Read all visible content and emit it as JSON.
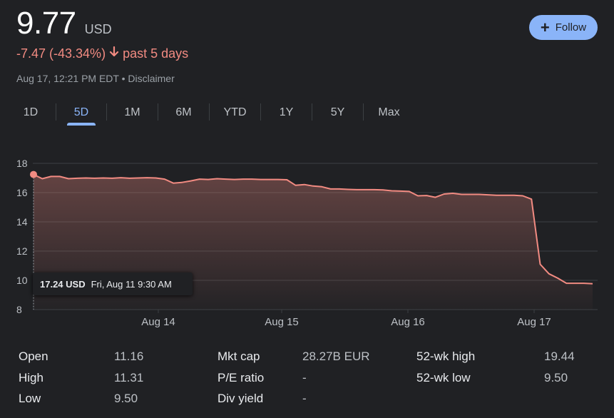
{
  "header": {
    "price": "9.77",
    "currency": "USD",
    "change": "-7.47 (-43.34%)",
    "period": "past 5 days",
    "timestamp": "Aug 17, 12:21 PM EDT",
    "separator": "•",
    "disclaimer": "Disclaimer",
    "follow_label": "Follow"
  },
  "tabs": [
    {
      "label": "1D",
      "active": false
    },
    {
      "label": "5D",
      "active": true
    },
    {
      "label": "1M",
      "active": false
    },
    {
      "label": "6M",
      "active": false
    },
    {
      "label": "YTD",
      "active": false
    },
    {
      "label": "1Y",
      "active": false
    },
    {
      "label": "5Y",
      "active": false
    },
    {
      "label": "Max",
      "active": false
    }
  ],
  "tooltip": {
    "value": "17.24 USD",
    "date": "Fri, Aug 11 9:30 AM"
  },
  "colors": {
    "line": "#f28b82",
    "accent": "#8ab4f8",
    "background": "#202124",
    "grid": "#3c4043"
  },
  "chart_data": {
    "type": "area",
    "x_tick_labels": [
      "Aug 14",
      "Aug 15",
      "Aug 16",
      "Aug 17"
    ],
    "y_tick_labels": [
      "18",
      "16",
      "14",
      "12",
      "10",
      "8"
    ],
    "ylim": [
      8,
      18
    ],
    "grid": true,
    "series": [
      {
        "values": [
          17.24,
          16.95,
          17.1,
          17.1,
          16.95,
          16.98,
          17.0,
          16.98,
          17.0,
          16.98,
          17.02,
          16.98,
          17.0,
          17.02,
          17.0,
          16.92,
          16.65,
          16.7,
          16.8,
          16.92,
          16.9,
          16.95,
          16.92,
          16.9,
          16.92,
          16.92,
          16.9,
          16.9,
          16.9,
          16.88,
          16.5,
          16.55,
          16.45,
          16.4,
          16.25,
          16.25,
          16.22,
          16.2,
          16.2,
          16.2,
          16.18,
          16.12,
          16.1,
          16.08,
          15.78,
          15.8,
          15.68,
          15.9,
          15.95,
          15.88,
          15.88,
          15.88,
          15.85,
          15.82,
          15.82,
          15.82,
          15.78,
          15.55,
          11.1,
          10.45,
          10.15,
          9.8,
          9.8,
          9.8,
          9.77
        ]
      }
    ]
  },
  "stats": [
    {
      "label": "Open",
      "value": "11.16"
    },
    {
      "label": "High",
      "value": "11.31"
    },
    {
      "label": "Low",
      "value": "9.50"
    },
    {
      "label": "Mkt cap",
      "value": "28.27B EUR"
    },
    {
      "label": "P/E ratio",
      "value": "-"
    },
    {
      "label": "Div yield",
      "value": "-"
    },
    {
      "label": "52-wk high",
      "value": "19.44"
    },
    {
      "label": "52-wk low",
      "value": "9.50"
    }
  ]
}
